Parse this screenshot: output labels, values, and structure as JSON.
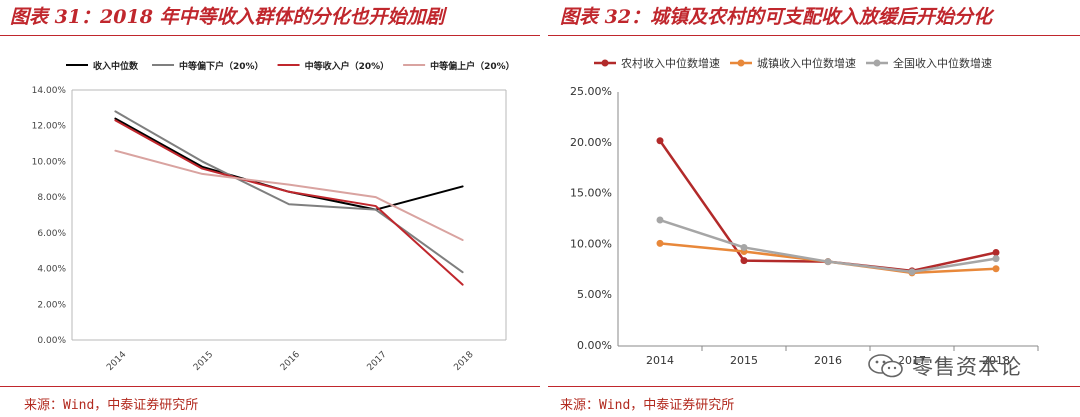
{
  "left_panel": {
    "title": "图表 31：2018 年中等收入群体的分化也开始加剧",
    "source": "来源：Wind，中泰证券研究所"
  },
  "right_panel": {
    "title": "图表 32：城镇及农村的可支配收入放缓后开始分化",
    "source": "来源：Wind，中泰证券研究所"
  },
  "watermark": {
    "text": "零售资本论",
    "icon": "wechat-icon"
  },
  "chart_data": [
    {
      "type": "line",
      "title": "",
      "x": [
        "2014",
        "2015",
        "2016",
        "2017",
        "2018"
      ],
      "ylim": [
        0,
        14
      ],
      "yticks": [
        "0.00%",
        "2.00%",
        "4.00%",
        "6.00%",
        "8.00%",
        "10.00%",
        "12.00%",
        "14.00%"
      ],
      "grid": false,
      "legend_position": "top",
      "series": [
        {
          "name": "收入中位数",
          "color": "#000000",
          "values": [
            12.4,
            9.7,
            8.3,
            7.3,
            8.6
          ]
        },
        {
          "name": "中等偏下户（20%）",
          "color": "#7f7f7f",
          "values": [
            12.8,
            10.0,
            7.6,
            7.3,
            3.8
          ]
        },
        {
          "name": "中等收入户（20%）",
          "color": "#c0272d",
          "values": [
            12.3,
            9.6,
            8.3,
            7.5,
            3.1
          ]
        },
        {
          "name": "中等偏上户（20%）",
          "color": "#d9a3a0",
          "values": [
            10.6,
            9.3,
            8.7,
            8.0,
            5.6
          ]
        }
      ]
    },
    {
      "type": "line",
      "title": "",
      "x": [
        "2014",
        "2015",
        "2016",
        "2017",
        "2018"
      ],
      "ylim": [
        0,
        25
      ],
      "yticks": [
        "0.00%",
        "5.00%",
        "10.00%",
        "15.00%",
        "20.00%",
        "25.00%"
      ],
      "grid": false,
      "legend_position": "top",
      "series": [
        {
          "name": "农村收入中位数增速",
          "color": "#b22a2a",
          "values": [
            20.2,
            8.4,
            8.3,
            7.4,
            9.2
          ]
        },
        {
          "name": "城镇收入中位数增速",
          "color": "#e8883a",
          "values": [
            10.1,
            9.3,
            8.3,
            7.2,
            7.6
          ]
        },
        {
          "name": "全国收入中位数增速",
          "color": "#a6a6a6",
          "values": [
            12.4,
            9.7,
            8.3,
            7.3,
            8.6
          ]
        }
      ]
    }
  ]
}
